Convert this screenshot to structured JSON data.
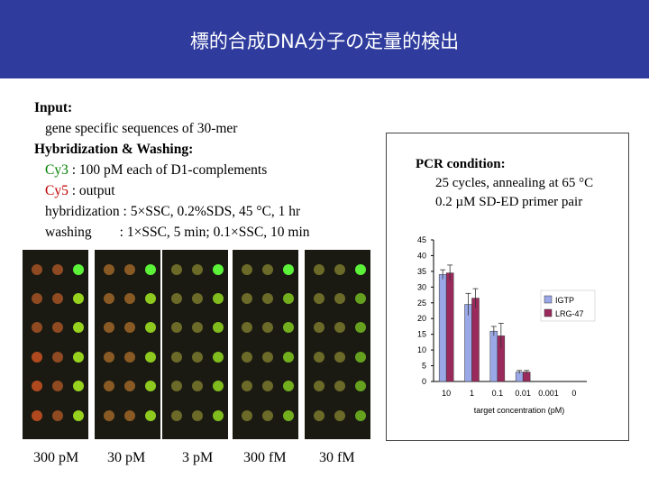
{
  "header": {
    "title": "標的合成DNA分子の定量的検出",
    "background": "#2f3c9d"
  },
  "methods": {
    "input_label": "Input:",
    "input_text": "gene specific sequences of 30-mer",
    "hybrid_label": "Hybridization & Washing:",
    "cy3_label": "Cy3",
    "cy3_text": " : 100 pM each of D1-complements",
    "cy5_label": "Cy5",
    "cy5_text": " : output",
    "hybridization_text": "hybridization : 5×SSC, 0.2%SDS, 45 °C, 1 hr",
    "washing_text": "washing        : 1×SSC, 5 min; 0.1×SSC, 10 min"
  },
  "array_images": {
    "concentrations": [
      "300 pM",
      "30 pM",
      "3 pM",
      "300 fM",
      "30 fM"
    ]
  },
  "pcr": {
    "title": "PCR condition:",
    "line1": "25 cycles, annealing at 65 °C",
    "line2": "0.2 µM SD-ED primer pair"
  },
  "chart_data": {
    "type": "bar",
    "title": "",
    "xlabel": "target concentration (pM)",
    "ylabel": "",
    "ylim": [
      0,
      45
    ],
    "yticks": [
      "0",
      "5",
      "10",
      "15",
      "20",
      "25",
      "30",
      "35",
      "40",
      "45"
    ],
    "categories": [
      "10",
      "1",
      "0.1",
      "0.01",
      "0.001",
      "0"
    ],
    "series": [
      {
        "name": "IGTP",
        "values": [
          34,
          24.5,
          16,
          3,
          0,
          0
        ],
        "errors": [
          1.5,
          3.5,
          1.5,
          0.5,
          0,
          0
        ],
        "color": "#9aa8e8"
      },
      {
        "name": "LRG-47",
        "values": [
          34.5,
          26.5,
          14.5,
          3,
          0,
          0
        ],
        "errors": [
          2.5,
          3,
          4,
          0.5,
          0,
          0
        ],
        "color": "#9b2a5c"
      }
    ],
    "legend_position": "right"
  }
}
